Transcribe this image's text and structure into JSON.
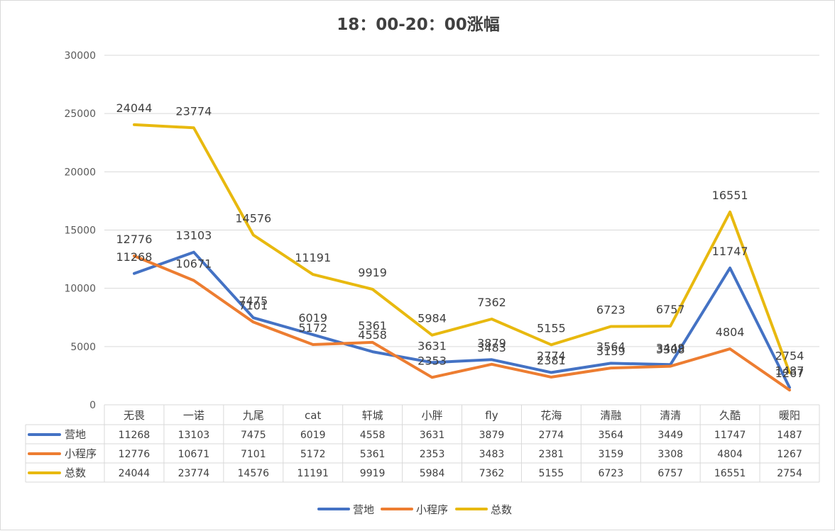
{
  "chart_data": {
    "type": "line",
    "title": "18：00-20：00涨幅",
    "xlabel": "",
    "ylabel": "",
    "ylim": [
      0,
      30000
    ],
    "yticks": [
      0,
      5000,
      10000,
      15000,
      20000,
      25000,
      30000
    ],
    "grid": true,
    "legend_position": "bottom",
    "data_table": true,
    "categories": [
      "无畏",
      "一诺",
      "九尾",
      "cat",
      "轩城",
      "小胖",
      "fly",
      "花海",
      "清融",
      "清清",
      "久酷",
      "暖阳"
    ],
    "series": [
      {
        "name": "营地",
        "color": "#4472C4",
        "values": [
          11268,
          13103,
          7475,
          6019,
          4558,
          3631,
          3879,
          2774,
          3564,
          3449,
          11747,
          1487
        ]
      },
      {
        "name": "小程序",
        "color": "#ED7D31",
        "values": [
          12776,
          10671,
          7101,
          5172,
          5361,
          2353,
          3483,
          2381,
          3159,
          3308,
          4804,
          1267
        ]
      },
      {
        "name": "总数",
        "color": "#E8B90F",
        "values": [
          24044,
          23774,
          14576,
          11191,
          9919,
          5984,
          7362,
          5155,
          6723,
          6757,
          16551,
          2754
        ]
      }
    ]
  }
}
